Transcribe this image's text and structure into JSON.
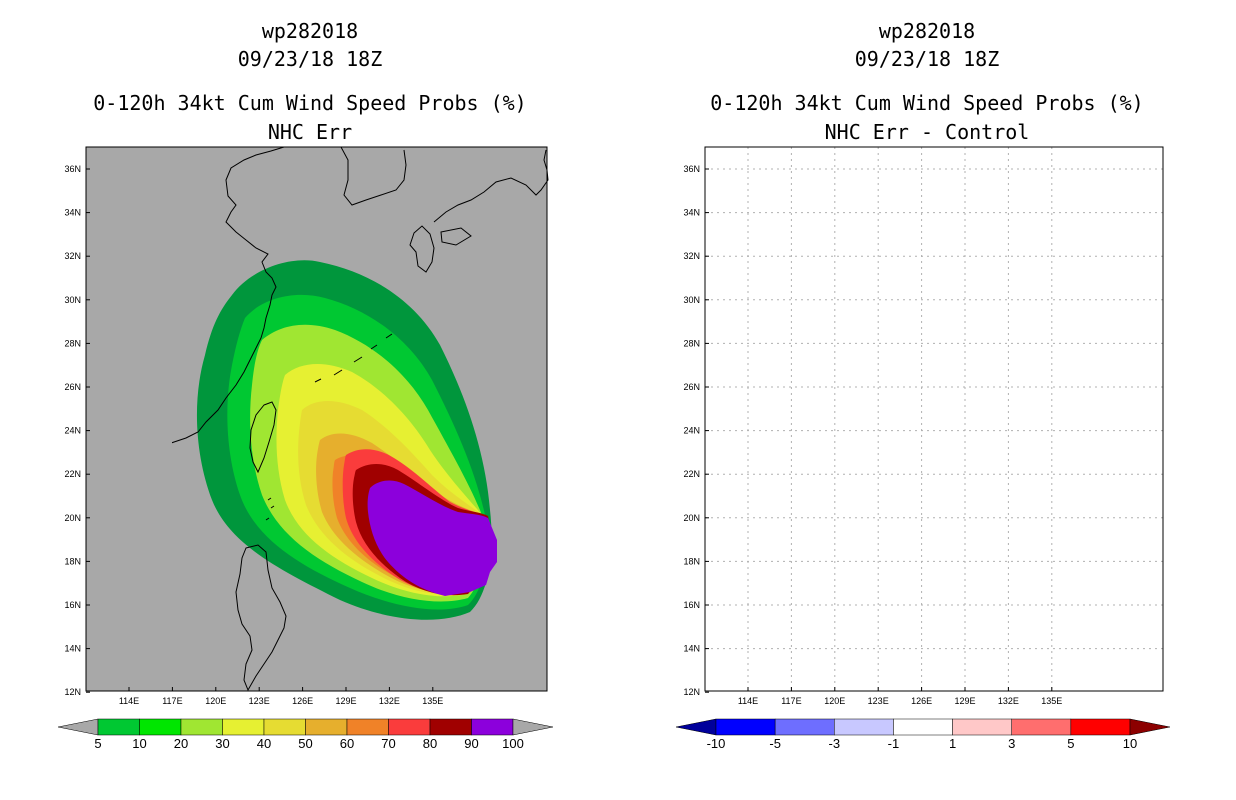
{
  "left": {
    "title_line1": "wp282018",
    "title_line2": "09/23/18 18Z",
    "title_line3": "0-120h 34kt Cum Wind Speed Probs (%)",
    "title_line4": "NHC Err",
    "colorbar": {
      "labels": [
        "5",
        "10",
        "20",
        "30",
        "40",
        "50",
        "60",
        "70",
        "80",
        "90",
        "100"
      ],
      "colors": [
        "#00963c",
        "#00c832",
        "#00e600",
        "#a0e632",
        "#e6f032",
        "#e6dc32",
        "#e6af2d",
        "#f08228",
        "#fa3c3c",
        "#a00000",
        "#8c00dc"
      ]
    }
  },
  "right": {
    "title_line1": "wp282018",
    "title_line2": "09/23/18 18Z",
    "title_line3": "0-120h 34kt Cum Wind Speed Probs (%)",
    "title_line4": "NHC Err - Control",
    "colorbar": {
      "labels": [
        "-10",
        "-5",
        "-3",
        "-1",
        "1",
        "3",
        "5",
        "10"
      ],
      "colors": [
        "#00009b",
        "#0000ff",
        "#6e6eff",
        "#c8c8ff",
        "#ffffff",
        "#ffc8c8",
        "#ff6e6e",
        "#ff0000",
        "#8c0000"
      ]
    }
  },
  "axes": {
    "lat_labels": [
      "36N",
      "34N",
      "32N",
      "30N",
      "28N",
      "26N",
      "24N",
      "22N",
      "20N",
      "18N",
      "16N",
      "14N",
      "12N"
    ],
    "lon_labels": [
      "114E",
      "117E",
      "120E",
      "123E",
      "126E",
      "129E",
      "132E",
      "135E"
    ]
  },
  "map_colors": {
    "background_left": "#a8a8a8",
    "background_right": "#ffffff",
    "grid": "#b0b0b0"
  }
}
